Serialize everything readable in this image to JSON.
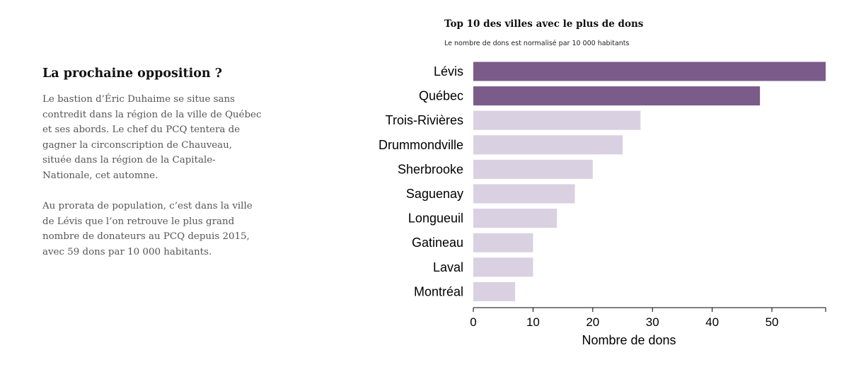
{
  "article": {
    "heading": "La prochaine opposition ?",
    "paragraphs": [
      "Le bastion d’Éric Duhaime se situe sans contredit dans la région de la ville de Québec et ses abords. Le chef du PCQ tentera de gagner la circonscription de Chauveau, située dans la région de la Capitale-Nationale, cet automne.",
      "Au prorata de population, c’est dans la ville de Lévis que l’on retrouve le plus grand nombre de donateurs au PCQ depuis 2015, avec 59 dons par 10 000 habitants."
    ]
  },
  "chart_data": {
    "type": "bar",
    "orientation": "horizontal",
    "title": "Top 10 des villes avec le plus de dons",
    "subtitle": "Le nombre de dons est normalisé par 10 000 habitants",
    "categories": [
      "Lévis",
      "Québec",
      "Trois-Rivières",
      "Drummondville",
      "Sherbrooke",
      "Saguenay",
      "Longueuil",
      "Gatineau",
      "Laval",
      "Montréal"
    ],
    "values": [
      59,
      48,
      28,
      25,
      20,
      17,
      14,
      10,
      10,
      7
    ],
    "highlighted": [
      "Lévis",
      "Québec"
    ],
    "xlabel": "Nombre de dons",
    "ylabel": "",
    "xlim": [
      0,
      59
    ],
    "xticks": [
      0,
      10,
      20,
      30,
      40,
      50
    ],
    "grid": false,
    "colors": {
      "highlight": "#7a5b89",
      "default": "#d9d0e1",
      "axis": "#000000"
    }
  }
}
